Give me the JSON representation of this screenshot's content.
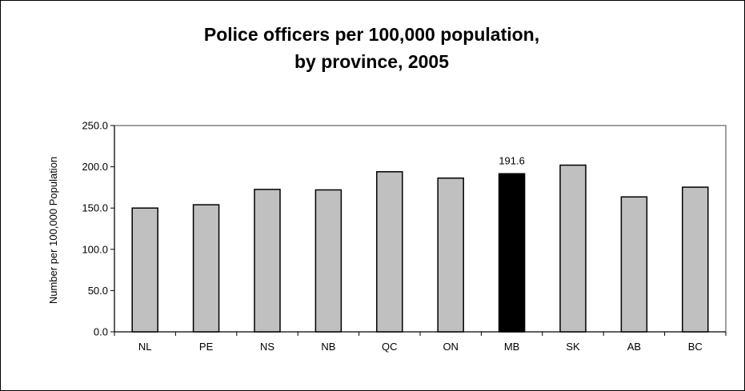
{
  "chart_data": {
    "type": "bar",
    "title_lines": [
      "Police officers per 100,000 population,",
      "by province, 2005"
    ],
    "ylabel": "Number per 100,000 Population",
    "xlabel": "",
    "categories": [
      "NL",
      "PE",
      "NS",
      "NB",
      "QC",
      "ON",
      "MB",
      "SK",
      "AB",
      "BC"
    ],
    "values": [
      150.0,
      154.0,
      172.6,
      172.0,
      194.0,
      186.3,
      191.6,
      202.0,
      163.5,
      175.3
    ],
    "ylim": [
      0,
      250
    ],
    "yticks": [
      "0.0",
      "50.0",
      "100.0",
      "150.0",
      "200.0",
      "250.0"
    ],
    "ytick_values": [
      0,
      50,
      100,
      150,
      200,
      250
    ],
    "grid": false,
    "legend": "none",
    "highlight": {
      "category": "MB",
      "label": "191.6"
    },
    "colors": {
      "bar_fill": "#c0c0c0",
      "highlight_fill": "#000000",
      "bar_stroke": "#000000",
      "plot_border": "#808080"
    }
  }
}
